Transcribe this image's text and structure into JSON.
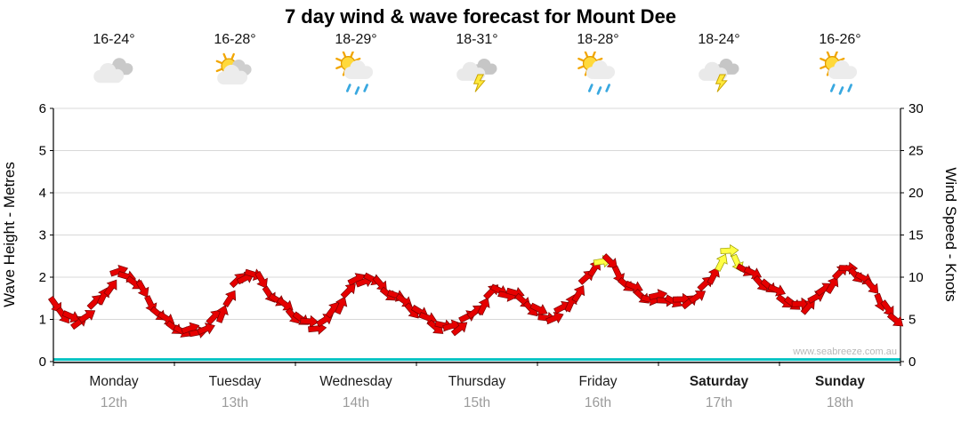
{
  "title": "7 day wind & wave forecast for Mount Dee",
  "watermark": "www.seabreeze.com.au",
  "days": [
    {
      "name": "Monday",
      "date": "12th",
      "temp": "16-24°",
      "icon": "cloudy",
      "bold": false
    },
    {
      "name": "Tuesday",
      "date": "13th",
      "temp": "16-28°",
      "icon": "partly-cloudy",
      "bold": false
    },
    {
      "name": "Wednesday",
      "date": "14th",
      "temp": "18-29°",
      "icon": "sun-showers",
      "bold": false
    },
    {
      "name": "Thursday",
      "date": "15th",
      "temp": "18-31°",
      "icon": "thunderstorm",
      "bold": false
    },
    {
      "name": "Friday",
      "date": "16th",
      "temp": "18-28°",
      "icon": "sun-showers",
      "bold": false
    },
    {
      "name": "Saturday",
      "date": "17th",
      "temp": "18-24°",
      "icon": "thunderstorm",
      "bold": true
    },
    {
      "name": "Sunday",
      "date": "18th",
      "temp": "16-26°",
      "icon": "sun-showers",
      "bold": true
    }
  ],
  "chart_data": {
    "type": "scatter",
    "marker": "wind-arrow",
    "title": "7 day wind & wave forecast for Mount Dee",
    "grid": "horizontal",
    "legend": "none",
    "x_range_days": [
      0,
      7
    ],
    "left_axis": {
      "label": "Wave Height - Metres",
      "range": [
        0,
        6
      ],
      "ticks": [
        0,
        1,
        2,
        3,
        4,
        5,
        6
      ]
    },
    "right_axis": {
      "label": "Wind Speed - Knots",
      "range": [
        0,
        30
      ],
      "ticks": [
        0,
        5,
        10,
        15,
        20,
        25,
        30
      ]
    },
    "series": [
      {
        "name": "Wind Speed (knots)",
        "axis": "right",
        "style": "arrows",
        "color_low": "#e60000",
        "stroke_low": "#7a0000",
        "color_high": "#ffff45",
        "stroke_high": "#999900",
        "high_threshold_knots": 11.8,
        "points": [
          [
            0.0,
            7
          ],
          [
            0.1,
            5.5
          ],
          [
            0.2,
            4.5
          ],
          [
            0.3,
            6
          ],
          [
            0.45,
            8.5
          ],
          [
            0.55,
            10.5
          ],
          [
            0.65,
            10
          ],
          [
            0.8,
            7
          ],
          [
            0.95,
            4.5
          ],
          [
            1.1,
            3.5
          ],
          [
            1.25,
            3.8
          ],
          [
            1.4,
            6
          ],
          [
            1.55,
            10
          ],
          [
            1.65,
            10.5
          ],
          [
            1.8,
            8
          ],
          [
            1.95,
            6
          ],
          [
            2.1,
            4.5
          ],
          [
            2.2,
            4.2
          ],
          [
            2.35,
            6.5
          ],
          [
            2.5,
            9.5
          ],
          [
            2.6,
            10
          ],
          [
            2.75,
            8.5
          ],
          [
            2.9,
            7
          ],
          [
            3.05,
            5.5
          ],
          [
            3.2,
            4
          ],
          [
            3.35,
            4.2
          ],
          [
            3.5,
            6
          ],
          [
            3.65,
            8.5
          ],
          [
            3.8,
            8
          ],
          [
            3.95,
            6.5
          ],
          [
            4.1,
            5
          ],
          [
            4.25,
            6.5
          ],
          [
            4.4,
            9.5
          ],
          [
            4.52,
            12.3
          ],
          [
            4.62,
            11.3
          ],
          [
            4.75,
            9
          ],
          [
            4.9,
            7.5
          ],
          [
            5.05,
            7.5
          ],
          [
            5.2,
            7
          ],
          [
            5.35,
            8
          ],
          [
            5.5,
            11.5
          ],
          [
            5.6,
            13
          ],
          [
            5.7,
            11
          ],
          [
            5.85,
            9.5
          ],
          [
            5.95,
            8.5
          ],
          [
            6.1,
            6.8
          ],
          [
            6.2,
            6.5
          ],
          [
            6.35,
            8
          ],
          [
            6.5,
            10.5
          ],
          [
            6.6,
            11
          ],
          [
            6.75,
            9
          ],
          [
            6.9,
            6
          ],
          [
            7.0,
            4
          ]
        ]
      },
      {
        "name": "Wave Height (m)",
        "axis": "left",
        "style": "line",
        "color": "#00c2c2",
        "points": [
          [
            0,
            0.05
          ],
          [
            7,
            0.05
          ]
        ]
      }
    ]
  }
}
